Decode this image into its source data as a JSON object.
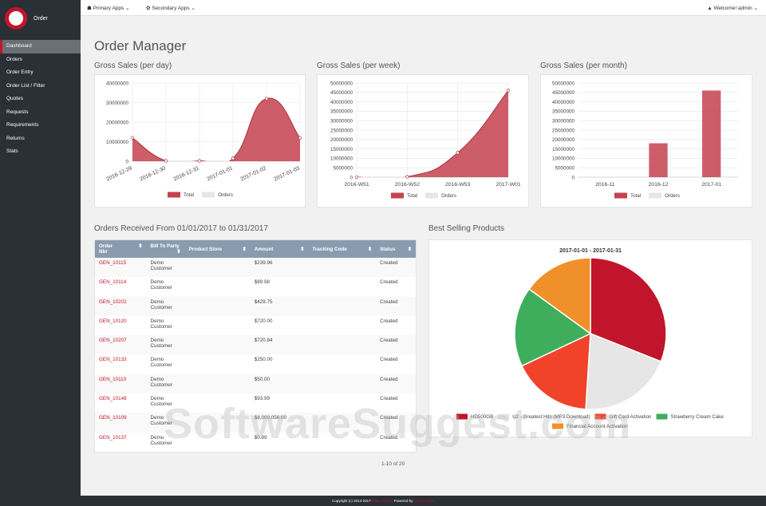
{
  "sidebar": {
    "logo": "Order",
    "nav": [
      "Dashboard",
      "Orders",
      "Order Entry",
      "Order List / Filter",
      "Quotes",
      "Requests",
      "Requirements",
      "Returns",
      "Stats"
    ]
  },
  "topbar": {
    "left": [
      "Primary Apps",
      "Secondary Apps"
    ],
    "right": "Welcome! admin"
  },
  "page_title": "Order Manager",
  "chart_data": [
    {
      "type": "area",
      "title": "Gross Sales (per day)",
      "categories": [
        "2016-12-29",
        "2016-12-30",
        "2016-12-31",
        "2017-01-01",
        "2017-01-02",
        "2017-01-03"
      ],
      "series": [
        {
          "name": "Total",
          "color": "#c4424f",
          "values": [
            12000000,
            200000,
            200000,
            1500000,
            32000000,
            12000000
          ]
        },
        {
          "name": "Orders",
          "color": "#e6e6e6",
          "values": [
            null,
            null,
            null,
            null,
            null,
            null
          ]
        }
      ],
      "ylim": [
        0,
        40000000
      ],
      "yticks": [
        0,
        10000000,
        20000000,
        30000000,
        40000000
      ],
      "grid": true
    },
    {
      "type": "area",
      "title": "Gross Sales (per week)",
      "categories": [
        "2016-W51",
        "2016-W52",
        "2016-W53",
        "2017-W01"
      ],
      "series": [
        {
          "name": "Total",
          "color": "#c4424f",
          "values": [
            0,
            200000,
            13000000,
            46000000
          ]
        },
        {
          "name": "Orders",
          "color": "#e6e6e6",
          "values": [
            null,
            null,
            null,
            null
          ]
        }
      ],
      "ylim": [
        0,
        50000000
      ],
      "yticks": [
        0,
        5000000,
        10000000,
        15000000,
        20000000,
        25000000,
        30000000,
        35000000,
        40000000,
        45000000,
        50000000
      ],
      "grid": true
    },
    {
      "type": "bar",
      "title": "Gross Sales (per month)",
      "categories": [
        "2016-11",
        "2016-12",
        "2017-01"
      ],
      "series": [
        {
          "name": "Total",
          "color": "#c4424f",
          "values": [
            0,
            18000000,
            46000000
          ]
        },
        {
          "name": "Orders",
          "color": "#e6e6e6",
          "values": [
            null,
            null,
            null
          ]
        }
      ],
      "ylim": [
        0,
        50000000
      ],
      "yticks": [
        0,
        5000000,
        10000000,
        15000000,
        20000000,
        25000000,
        30000000,
        35000000,
        40000000,
        45000000,
        50000000
      ],
      "grid": true
    },
    {
      "type": "pie",
      "title": "Best Selling Products",
      "subtitle": "2017-01-01 - 2017-01-31",
      "categories": [
        "HD500GB",
        "U2 - Greatest Hits (MP3 Download)",
        "Gift Card Activation",
        "Strawberry Cream Cake",
        "Financial Account Activation"
      ],
      "values": [
        31,
        20,
        17,
        17,
        15
      ],
      "colors": [
        "#c0152a",
        "#e6e6e6",
        "#f0432a",
        "#3fae5c",
        "#f0902a"
      ]
    }
  ],
  "table": {
    "title": "Orders Received From 01/01/2017 to 01/31/2017",
    "columns": [
      "Order Nbr",
      "Bill To Party",
      "Product Store",
      "Amount",
      "Tracking Code",
      "Status"
    ],
    "rows": [
      {
        "order": "GEN_10115",
        "party": "Demo Customer",
        "amount": "$239.96",
        "status": "Created"
      },
      {
        "order": "GEN_10114",
        "party": "Demo Customer",
        "amount": "$89.98",
        "status": "Created"
      },
      {
        "order": "GEN_10202",
        "party": "Demo Customer",
        "amount": "$429.75",
        "status": "Created"
      },
      {
        "order": "GEN_10120",
        "party": "Demo Customer",
        "amount": "$720.00",
        "status": "Created"
      },
      {
        "order": "GEN_10207",
        "party": "Demo Customer",
        "amount": "$720.84",
        "status": "Created"
      },
      {
        "order": "GEN_10133",
        "party": "Demo Customer",
        "amount": "$250.00",
        "status": "Created"
      },
      {
        "order": "GEN_10110",
        "party": "Demo Customer",
        "amount": "$50.00",
        "status": "Created"
      },
      {
        "order": "GEN_10148",
        "party": "Demo Customer",
        "amount": "$93.99",
        "status": "Created"
      },
      {
        "order": "GEN_10109",
        "party": "Demo Customer",
        "amount": "$8,000,056.00",
        "status": "Created"
      },
      {
        "order": "GEN_10137",
        "party": "Demo Customer",
        "amount": "$0.89",
        "status": "Created"
      }
    ],
    "pagination": "1-10 of 20"
  },
  "footer": [
    "Copyright (c) 2014-2017",
    "Scipio GmbH",
    ". Powered by",
    "SCIPIO ERP",
    "."
  ],
  "watermark": "SoftwareSuggest.com"
}
